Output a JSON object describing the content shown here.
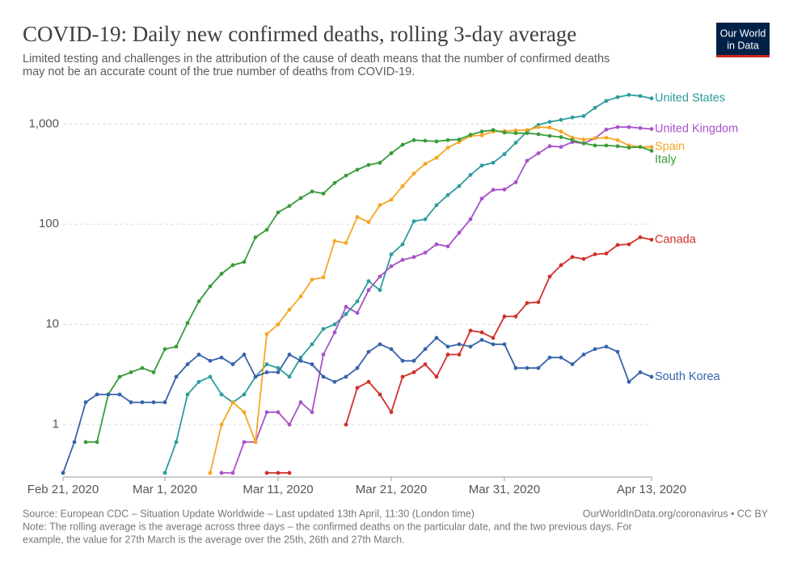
{
  "chart_data": {
    "type": "line",
    "title": "COVID-19: Daily new confirmed deaths, rolling 3-day average",
    "subtitle": [
      "Limited testing and challenges in the attribution of the cause of death means that the number of confirmed deaths",
      "may not be an accurate count of the true number of deaths from COVID-19."
    ],
    "logo": [
      "Our World",
      "in Data"
    ],
    "source": "Source: European CDC – Situation Update Worldwide – Last updated 13th April, 11:30 (London time)",
    "url": "OurWorldInData.org/coronavirus • CC BY",
    "note": [
      "Note: The rolling average is the average across three days – the confirmed deaths on the particular date, and the two previous days. For",
      "example, the value for 27th March is the average over the 25th, 26th and 27th March."
    ],
    "log_scale": true,
    "grid": true,
    "x": [
      "2020-02-21",
      "2020-02-22",
      "2020-02-23",
      "2020-02-24",
      "2020-02-25",
      "2020-02-26",
      "2020-02-27",
      "2020-02-28",
      "2020-02-29",
      "2020-03-01",
      "2020-03-02",
      "2020-03-03",
      "2020-03-04",
      "2020-03-05",
      "2020-03-06",
      "2020-03-07",
      "2020-03-08",
      "2020-03-09",
      "2020-03-10",
      "2020-03-11",
      "2020-03-12",
      "2020-03-13",
      "2020-03-14",
      "2020-03-15",
      "2020-03-16",
      "2020-03-17",
      "2020-03-18",
      "2020-03-19",
      "2020-03-20",
      "2020-03-21",
      "2020-03-22",
      "2020-03-23",
      "2020-03-24",
      "2020-03-25",
      "2020-03-26",
      "2020-03-27",
      "2020-03-28",
      "2020-03-29",
      "2020-03-30",
      "2020-03-31",
      "2020-04-01",
      "2020-04-02",
      "2020-04-03",
      "2020-04-04",
      "2020-04-05",
      "2020-04-06",
      "2020-04-07",
      "2020-04-08",
      "2020-04-09",
      "2020-04-10",
      "2020-04-11",
      "2020-04-12",
      "2020-04-13"
    ],
    "xlim": [
      "2020-02-21",
      "2020-04-13"
    ],
    "xticks": [
      {
        "value": "2020-02-21",
        "label": "Feb 21, 2020"
      },
      {
        "value": "2020-03-01",
        "label": "Mar 1, 2020"
      },
      {
        "value": "2020-03-11",
        "label": "Mar 11, 2020"
      },
      {
        "value": "2020-03-21",
        "label": "Mar 21, 2020"
      },
      {
        "value": "2020-03-31",
        "label": "Mar 31, 2020"
      },
      {
        "value": "2020-04-13",
        "label": "Apr 13, 2020"
      }
    ],
    "ylim": [
      0.3,
      2000
    ],
    "yticks": [
      1,
      10,
      100,
      {
        "value": 1000,
        "label": "1,000"
      }
    ],
    "series": [
      {
        "name": "United States",
        "color": "#2e9c9e",
        "values": [
          null,
          null,
          null,
          null,
          null,
          null,
          null,
          null,
          null,
          0.33,
          0.67,
          2,
          2.67,
          3,
          2,
          1.67,
          2,
          3,
          4,
          3.67,
          3,
          4.67,
          6.33,
          9,
          10,
          12.67,
          17,
          27,
          22,
          50,
          63,
          107,
          112,
          155,
          195,
          240,
          310,
          385,
          410,
          500,
          650,
          840,
          980,
          1050,
          1100,
          1160,
          1200,
          1450,
          1700,
          1850,
          1950,
          1900,
          1800
        ]
      },
      {
        "name": "United Kingdom",
        "color": "#a752c9",
        "values": [
          null,
          null,
          null,
          null,
          null,
          null,
          null,
          null,
          null,
          null,
          null,
          null,
          null,
          null,
          0.33,
          0.33,
          0.67,
          0.67,
          1.33,
          1.33,
          1,
          1.67,
          1.33,
          5,
          8.33,
          15,
          13,
          22,
          30,
          38,
          44,
          47,
          52,
          63,
          60,
          82,
          112,
          180,
          220,
          222,
          262,
          430,
          510,
          600,
          590,
          660,
          640,
          720,
          880,
          930,
          930,
          910,
          890
        ]
      },
      {
        "name": "Spain",
        "color": "#f5a623",
        "values": [
          null,
          null,
          null,
          null,
          null,
          null,
          null,
          null,
          null,
          null,
          null,
          null,
          null,
          0.33,
          1,
          1.67,
          1.33,
          0.67,
          8,
          10,
          14,
          19,
          28,
          29.5,
          68,
          65,
          118,
          105,
          155,
          175,
          240,
          320,
          400,
          460,
          580,
          660,
          760,
          770,
          840,
          850,
          860,
          870,
          930,
          920,
          840,
          730,
          700,
          720,
          730,
          690,
          610,
          590,
          590
        ]
      },
      {
        "name": "Italy",
        "color": "#3a9b3a",
        "values": [
          null,
          null,
          0.67,
          0.67,
          2,
          3,
          3.33,
          3.67,
          3.33,
          5.67,
          6,
          10.33,
          17,
          24,
          32,
          39,
          42,
          74,
          88,
          131,
          152,
          182,
          212,
          202,
          258,
          305,
          350,
          390,
          410,
          510,
          620,
          690,
          680,
          670,
          690,
          700,
          780,
          840,
          870,
          820,
          810,
          810,
          790,
          760,
          740,
          690,
          640,
          610,
          610,
          600,
          580,
          590,
          540
        ]
      },
      {
        "name": "Canada",
        "color": "#d0302b",
        "values": [
          null,
          null,
          null,
          null,
          null,
          null,
          null,
          null,
          null,
          null,
          null,
          null,
          null,
          null,
          null,
          null,
          null,
          null,
          0.33,
          0.33,
          0.33,
          null,
          null,
          null,
          null,
          1,
          2.33,
          2.67,
          2,
          1.33,
          3,
          3.33,
          4,
          3,
          5,
          5,
          8.67,
          8.33,
          7.33,
          12,
          12,
          16.33,
          16.67,
          30,
          39,
          47,
          45,
          50,
          51,
          62,
          63,
          74,
          70
        ]
      },
      {
        "name": "South Korea",
        "color": "#3763ab",
        "values": [
          0.33,
          0.67,
          1.67,
          2,
          2,
          2,
          1.67,
          1.67,
          1.67,
          1.67,
          3,
          4,
          5,
          4.33,
          4.67,
          4,
          5,
          3,
          3.33,
          3.33,
          5,
          4.33,
          4,
          3,
          2.67,
          3,
          3.67,
          5.33,
          6.33,
          5.67,
          4.33,
          4.33,
          5.67,
          7.33,
          6,
          6.33,
          6,
          7,
          6.33,
          6.33,
          3.67,
          3.67,
          3.67,
          4.67,
          4.67,
          4,
          5,
          5.67,
          6,
          5.33,
          2.67,
          3.33,
          3
        ]
      }
    ]
  }
}
